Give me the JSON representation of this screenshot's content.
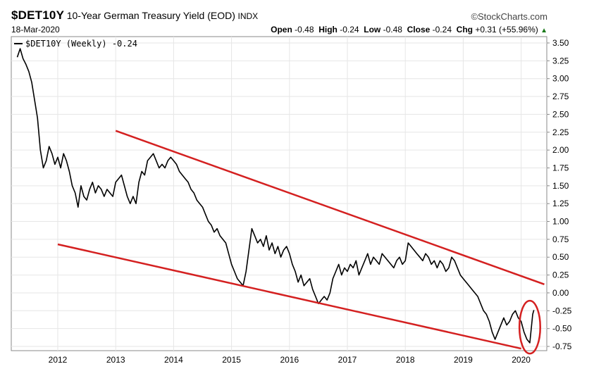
{
  "header": {
    "symbol": "$DET10Y",
    "description": "10-Year German Treasury Yield (EOD)",
    "exchange": "INDX",
    "date": "18-Mar-2020",
    "brand": "©StockCharts.com",
    "open_label": "Open",
    "open": "-0.48",
    "high_label": "High",
    "high": "-0.24",
    "low_label": "Low",
    "low": "-0.48",
    "close_label": "Close",
    "close": "-0.24",
    "chg_label": "Chg",
    "chg": "+0.31 (+55.96%)",
    "chg_arrow": "▲"
  },
  "chart_data": {
    "type": "line",
    "legend": "$DET10Y (Weekly) -0.24",
    "x_ticks": [
      "2012",
      "2013",
      "2014",
      "2015",
      "2016",
      "2017",
      "2018",
      "2019",
      "2020"
    ],
    "y_ticks": [
      "3.50",
      "3.25",
      "3.00",
      "2.75",
      "2.50",
      "2.25",
      "2.00",
      "1.75",
      "1.50",
      "1.25",
      "1.00",
      "0.75",
      "0.50",
      "0.25",
      "0.00",
      "-0.25",
      "-0.50",
      "-0.75"
    ],
    "ylim": [
      -0.8,
      3.55
    ],
    "xlim": [
      2011.3,
      2020.45
    ],
    "series": [
      {
        "color": "#000000",
        "x": [
          2011.3,
          2011.35,
          2011.4,
          2011.45,
          2011.5,
          2011.55,
          2011.6,
          2011.65,
          2011.7,
          2011.75,
          2011.8,
          2011.85,
          2011.9,
          2011.95,
          2012.0,
          2012.05,
          2012.1,
          2012.15,
          2012.2,
          2012.25,
          2012.3,
          2012.35,
          2012.4,
          2012.45,
          2012.5,
          2012.55,
          2012.6,
          2012.65,
          2012.7,
          2012.75,
          2012.8,
          2012.85,
          2012.9,
          2012.95,
          2013.0,
          2013.05,
          2013.1,
          2013.15,
          2013.2,
          2013.25,
          2013.3,
          2013.35,
          2013.4,
          2013.45,
          2013.5,
          2013.55,
          2013.6,
          2013.65,
          2013.7,
          2013.75,
          2013.8,
          2013.85,
          2013.9,
          2013.95,
          2014.0,
          2014.05,
          2014.1,
          2014.15,
          2014.2,
          2014.25,
          2014.3,
          2014.35,
          2014.4,
          2014.45,
          2014.5,
          2014.55,
          2014.6,
          2014.65,
          2014.7,
          2014.75,
          2014.8,
          2014.85,
          2014.9,
          2014.95,
          2015.0,
          2015.05,
          2015.1,
          2015.15,
          2015.2,
          2015.25,
          2015.3,
          2015.35,
          2015.4,
          2015.45,
          2015.5,
          2015.55,
          2015.6,
          2015.65,
          2015.7,
          2015.75,
          2015.8,
          2015.85,
          2015.9,
          2015.95,
          2016.0,
          2016.05,
          2016.1,
          2016.15,
          2016.2,
          2016.25,
          2016.3,
          2016.35,
          2016.4,
          2016.45,
          2016.5,
          2016.55,
          2016.6,
          2016.65,
          2016.7,
          2016.75,
          2016.8,
          2016.85,
          2016.9,
          2016.95,
          2017.0,
          2017.05,
          2017.1,
          2017.15,
          2017.2,
          2017.25,
          2017.3,
          2017.35,
          2017.4,
          2017.45,
          2017.5,
          2017.55,
          2017.6,
          2017.65,
          2017.7,
          2017.75,
          2017.8,
          2017.85,
          2017.9,
          2017.95,
          2018.0,
          2018.05,
          2018.1,
          2018.15,
          2018.2,
          2018.25,
          2018.3,
          2018.35,
          2018.4,
          2018.45,
          2018.5,
          2018.55,
          2018.6,
          2018.65,
          2018.7,
          2018.75,
          2018.8,
          2018.85,
          2018.9,
          2018.95,
          2019.0,
          2019.05,
          2019.1,
          2019.15,
          2019.2,
          2019.25,
          2019.3,
          2019.35,
          2019.4,
          2019.45,
          2019.5,
          2019.55,
          2019.6,
          2019.65,
          2019.7,
          2019.75,
          2019.8,
          2019.85,
          2019.9,
          2019.95,
          2020.0,
          2020.05,
          2020.1,
          2020.15,
          2020.2,
          2020.22
        ],
        "values": [
          3.3,
          3.42,
          3.28,
          3.2,
          3.1,
          2.95,
          2.7,
          2.45,
          2.0,
          1.75,
          1.85,
          2.05,
          1.95,
          1.8,
          1.9,
          1.75,
          1.95,
          1.85,
          1.7,
          1.5,
          1.4,
          1.2,
          1.5,
          1.35,
          1.3,
          1.45,
          1.55,
          1.4,
          1.5,
          1.45,
          1.35,
          1.45,
          1.4,
          1.35,
          1.55,
          1.6,
          1.65,
          1.5,
          1.35,
          1.25,
          1.35,
          1.25,
          1.55,
          1.7,
          1.65,
          1.85,
          1.9,
          1.95,
          1.85,
          1.75,
          1.8,
          1.75,
          1.85,
          1.9,
          1.85,
          1.8,
          1.7,
          1.65,
          1.6,
          1.55,
          1.45,
          1.4,
          1.3,
          1.25,
          1.2,
          1.1,
          1.0,
          0.95,
          0.85,
          0.9,
          0.8,
          0.75,
          0.7,
          0.55,
          0.4,
          0.3,
          0.2,
          0.15,
          0.1,
          0.3,
          0.6,
          0.9,
          0.8,
          0.7,
          0.75,
          0.65,
          0.8,
          0.6,
          0.7,
          0.55,
          0.65,
          0.5,
          0.6,
          0.65,
          0.55,
          0.4,
          0.3,
          0.15,
          0.25,
          0.1,
          0.15,
          0.2,
          0.05,
          -0.05,
          -0.15,
          -0.1,
          -0.05,
          -0.1,
          0.0,
          0.2,
          0.3,
          0.4,
          0.25,
          0.35,
          0.3,
          0.4,
          0.35,
          0.45,
          0.25,
          0.35,
          0.45,
          0.55,
          0.4,
          0.5,
          0.45,
          0.4,
          0.55,
          0.5,
          0.45,
          0.4,
          0.35,
          0.45,
          0.5,
          0.4,
          0.45,
          0.7,
          0.65,
          0.6,
          0.55,
          0.5,
          0.45,
          0.55,
          0.5,
          0.4,
          0.45,
          0.35,
          0.45,
          0.4,
          0.3,
          0.35,
          0.5,
          0.45,
          0.35,
          0.25,
          0.2,
          0.15,
          0.1,
          0.05,
          0.0,
          -0.05,
          -0.15,
          -0.25,
          -0.3,
          -0.4,
          -0.55,
          -0.65,
          -0.55,
          -0.45,
          -0.35,
          -0.45,
          -0.4,
          -0.3,
          -0.25,
          -0.35,
          -0.4,
          -0.55,
          -0.65,
          -0.7,
          -0.3,
          -0.24
        ]
      }
    ],
    "annotations": {
      "trendlines": [
        {
          "color": "#d42020",
          "x": [
            2013.0,
            2020.4
          ],
          "y": [
            2.27,
            0.12
          ]
        },
        {
          "color": "#d42020",
          "x": [
            2012.0,
            2020.0
          ],
          "y": [
            0.68,
            -0.78
          ]
        }
      ],
      "circle": {
        "color": "#d42020",
        "cx": 2020.15,
        "cy": -0.48,
        "rx": 0.18,
        "ry": 0.37
      }
    },
    "grid": "horizontal and vertical"
  }
}
